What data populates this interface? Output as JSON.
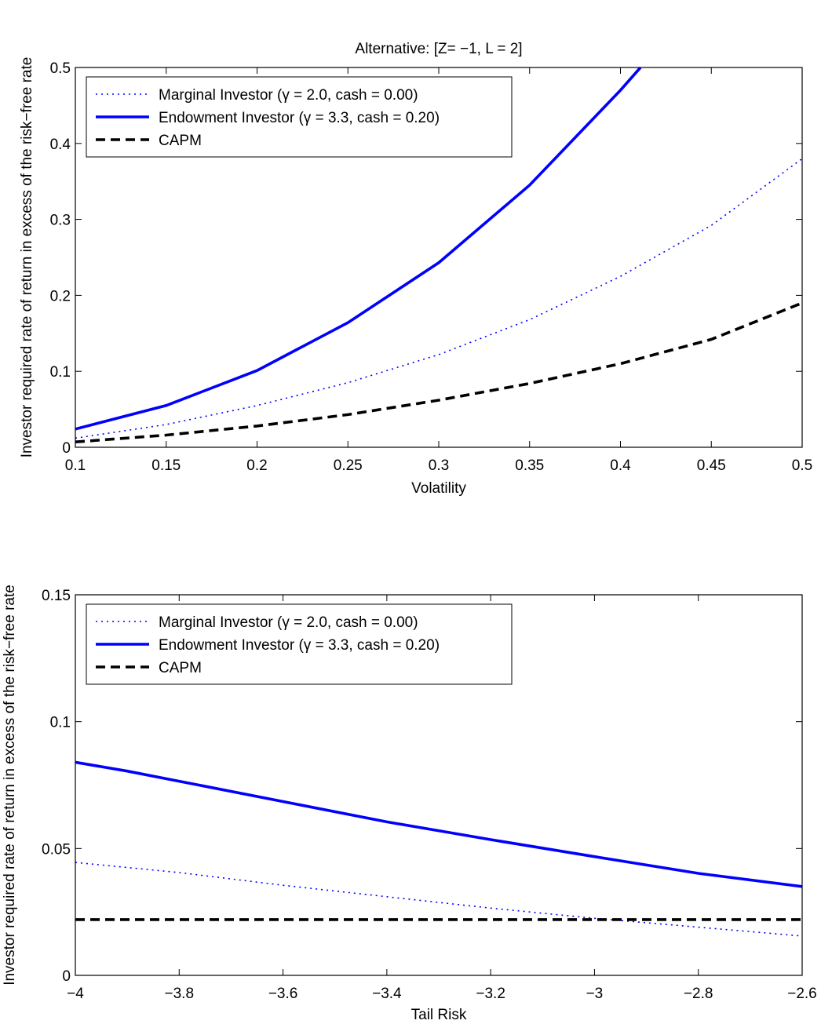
{
  "chart_data": [
    {
      "type": "line",
      "title": "Alternative: [Z= −1, L = 2]",
      "xlabel": "Volatility",
      "ylabel": "Investor required rate of return in excess of the risk−free rate",
      "xlim": [
        0.1,
        0.5
      ],
      "ylim": [
        0,
        0.5
      ],
      "xticks": [
        0.1,
        0.15,
        0.2,
        0.25,
        0.3,
        0.35,
        0.4,
        0.45,
        0.5
      ],
      "xtick_labels": [
        "0.1",
        "0.15",
        "0.2",
        "0.25",
        "0.3",
        "0.35",
        "0.4",
        "0.45",
        "0.5"
      ],
      "yticks": [
        0,
        0.1,
        0.2,
        0.3,
        0.4,
        0.5
      ],
      "ytick_labels": [
        "0",
        "0.1",
        "0.2",
        "0.3",
        "0.4",
        "0.5"
      ],
      "grid": false,
      "legend_position": "top-left",
      "series": [
        {
          "name": "Marginal Investor (γ = 2.0, cash = 0.00)",
          "color": "#0000ff",
          "style": "dotted",
          "x": [
            0.1,
            0.15,
            0.2,
            0.25,
            0.3,
            0.35,
            0.4,
            0.45,
            0.5
          ],
          "y": [
            0.012,
            0.03,
            0.055,
            0.085,
            0.122,
            0.168,
            0.225,
            0.292,
            0.38
          ]
        },
        {
          "name": "Endowment Investor (γ = 3.3, cash = 0.20)",
          "color": "#0000ff",
          "style": "solid",
          "x": [
            0.1,
            0.15,
            0.2,
            0.25,
            0.3,
            0.35,
            0.4,
            0.411
          ],
          "y": [
            0.024,
            0.055,
            0.101,
            0.164,
            0.243,
            0.345,
            0.47,
            0.5
          ]
        },
        {
          "name": "CAPM",
          "color": "#000000",
          "style": "dashed",
          "x": [
            0.1,
            0.15,
            0.2,
            0.25,
            0.3,
            0.35,
            0.4,
            0.45,
            0.5
          ],
          "y": [
            0.007,
            0.016,
            0.028,
            0.043,
            0.062,
            0.084,
            0.11,
            0.142,
            0.19
          ]
        }
      ]
    },
    {
      "type": "line",
      "title": "",
      "xlabel": "Tail Risk",
      "ylabel": "Investor required rate of return in excess of the risk−free rate",
      "xlim": [
        -4,
        -2.6
      ],
      "ylim": [
        0,
        0.15
      ],
      "xticks": [
        -4,
        -3.8,
        -3.6,
        -3.4,
        -3.2,
        -3,
        -2.8,
        -2.6
      ],
      "xtick_labels": [
        "−4",
        "−3.8",
        "−3.6",
        "−3.4",
        "−3.2",
        "−3",
        "−2.8",
        "−2.6"
      ],
      "yticks": [
        0,
        0.05,
        0.1,
        0.15
      ],
      "ytick_labels": [
        "0",
        "0.05",
        "0.1",
        "0.15"
      ],
      "grid": false,
      "legend_position": "top-left",
      "series": [
        {
          "name": "Marginal Investor (γ = 2.0, cash = 0.00)",
          "color": "#0000ff",
          "style": "dotted",
          "x": [
            -4,
            -3.8,
            -3.6,
            -3.4,
            -3.2,
            -3,
            -2.8,
            -2.6
          ],
          "y": [
            0.0445,
            0.0405,
            0.0355,
            0.031,
            0.0265,
            0.0225,
            0.019,
            0.0155
          ]
        },
        {
          "name": "Endowment Investor (γ = 3.3, cash = 0.20)",
          "color": "#0000ff",
          "style": "solid",
          "x": [
            -4,
            -3.9,
            -3.8,
            -3.6,
            -3.4,
            -3.2,
            -3,
            -2.8,
            -2.6
          ],
          "y": [
            0.084,
            0.0805,
            0.0765,
            0.0685,
            0.0605,
            0.0535,
            0.0468,
            0.0402,
            0.035
          ]
        },
        {
          "name": "CAPM",
          "color": "#000000",
          "style": "dashed",
          "x": [
            -4,
            -2.6
          ],
          "y": [
            0.022,
            0.022
          ]
        }
      ]
    }
  ]
}
